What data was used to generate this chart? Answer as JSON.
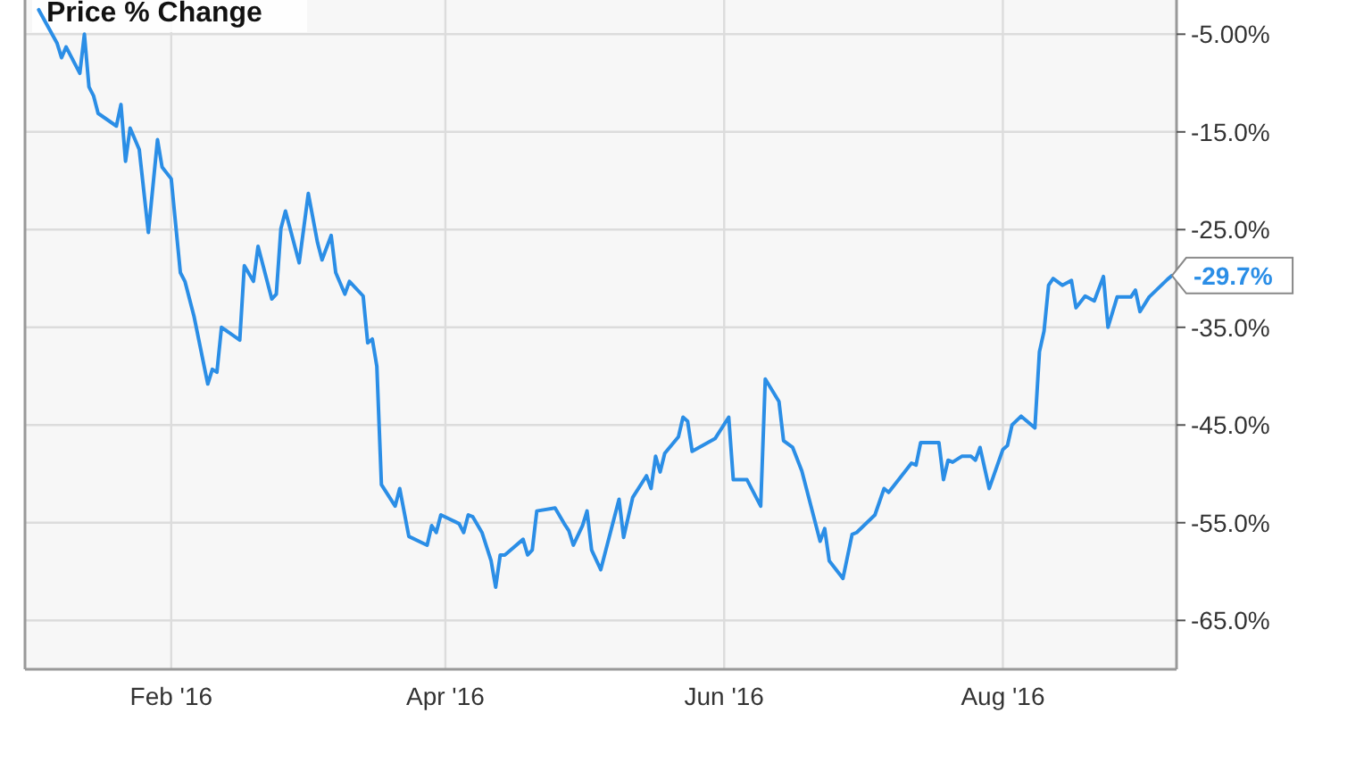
{
  "chart_data": {
    "type": "line",
    "title": "Price % Change",
    "x": [
      "2016-01-03",
      "2016-01-07",
      "2016-01-08",
      "2016-01-09",
      "2016-01-12",
      "2016-01-13",
      "2016-01-14",
      "2016-01-15",
      "2016-01-16",
      "2016-01-20",
      "2016-01-21",
      "2016-01-22",
      "2016-01-23",
      "2016-01-25",
      "2016-01-27",
      "2016-01-29",
      "2016-01-30",
      "2016-02-01",
      "2016-02-03",
      "2016-02-04",
      "2016-02-06",
      "2016-02-09",
      "2016-02-10",
      "2016-02-11",
      "2016-02-12",
      "2016-02-16",
      "2016-02-17",
      "2016-02-19",
      "2016-02-20",
      "2016-02-23",
      "2016-02-24",
      "2016-02-25",
      "2016-02-26",
      "2016-02-29",
      "2016-03-02",
      "2016-03-04",
      "2016-03-05",
      "2016-03-07",
      "2016-03-08",
      "2016-03-10",
      "2016-03-11",
      "2016-03-14",
      "2016-03-15",
      "2016-03-16",
      "2016-03-17",
      "2016-03-18",
      "2016-03-21",
      "2016-03-22",
      "2016-03-24",
      "2016-03-28",
      "2016-03-29",
      "2016-03-30",
      "2016-03-31",
      "2016-04-04",
      "2016-04-05",
      "2016-04-06",
      "2016-04-07",
      "2016-04-09",
      "2016-04-11",
      "2016-04-12",
      "2016-04-13",
      "2016-04-14",
      "2016-04-18",
      "2016-04-19",
      "2016-04-20",
      "2016-04-21",
      "2016-04-25",
      "2016-04-27",
      "2016-04-28",
      "2016-04-29",
      "2016-05-01",
      "2016-05-02",
      "2016-05-03",
      "2016-05-05",
      "2016-05-09",
      "2016-05-10",
      "2016-05-12",
      "2016-05-15",
      "2016-05-16",
      "2016-05-17",
      "2016-05-18",
      "2016-05-19",
      "2016-05-22",
      "2016-05-23",
      "2016-05-24",
      "2016-05-25",
      "2016-05-30",
      "2016-06-02",
      "2016-06-03",
      "2016-06-06",
      "2016-06-08",
      "2016-06-09",
      "2016-06-10",
      "2016-06-13",
      "2016-06-14",
      "2016-06-16",
      "2016-06-18",
      "2016-06-22",
      "2016-06-23",
      "2016-06-24",
      "2016-06-27",
      "2016-06-29",
      "2016-06-30",
      "2016-07-04",
      "2016-07-06",
      "2016-07-07",
      "2016-07-12",
      "2016-07-13",
      "2016-07-14",
      "2016-07-18",
      "2016-07-19",
      "2016-07-20",
      "2016-07-21",
      "2016-07-23",
      "2016-07-25",
      "2016-07-26",
      "2016-07-27",
      "2016-07-29",
      "2016-08-01",
      "2016-08-02",
      "2016-08-03",
      "2016-08-05",
      "2016-08-08",
      "2016-08-09",
      "2016-08-10",
      "2016-08-11",
      "2016-08-12",
      "2016-08-14",
      "2016-08-16",
      "2016-08-17",
      "2016-08-19",
      "2016-08-21",
      "2016-08-23",
      "2016-08-24",
      "2016-08-26",
      "2016-08-29",
      "2016-08-30",
      "2016-08-31",
      "2016-09-02",
      "2016-09-06",
      "2016-09-07"
    ],
    "series": [
      {
        "color": "#2b8ee6",
        "values": [
          -2.5,
          -5.9,
          -7.4,
          -6.3,
          -9.0,
          -5.0,
          -10.4,
          -11.3,
          -13.1,
          -14.4,
          -12.2,
          -18.0,
          -14.6,
          -16.8,
          -25.3,
          -15.8,
          -18.6,
          -19.8,
          -29.4,
          -30.3,
          -33.9,
          -40.8,
          -39.3,
          -39.6,
          -35.0,
          -36.3,
          -28.7,
          -30.3,
          -26.7,
          -32.1,
          -31.6,
          -24.9,
          -23.1,
          -28.4,
          -21.3,
          -26.3,
          -28.1,
          -25.6,
          -29.4,
          -31.6,
          -30.3,
          -31.8,
          -36.6,
          -36.2,
          -39.0,
          -51.1,
          -53.3,
          -51.5,
          -56.4,
          -57.3,
          -55.3,
          -56.0,
          -54.2,
          -55.1,
          -56.0,
          -54.2,
          -54.4,
          -56.0,
          -58.9,
          -61.6,
          -58.3,
          -58.3,
          -56.7,
          -58.3,
          -57.8,
          -53.8,
          -53.5,
          -55.1,
          -55.8,
          -57.3,
          -55.3,
          -53.8,
          -57.8,
          -59.8,
          -52.6,
          -56.5,
          -52.4,
          -50.2,
          -51.5,
          -48.2,
          -49.8,
          -47.9,
          -46.2,
          -44.2,
          -44.6,
          -47.7,
          -46.4,
          -44.2,
          -50.6,
          -50.6,
          -52.4,
          -53.3,
          -40.3,
          -42.6,
          -46.6,
          -47.3,
          -49.7,
          -56.9,
          -55.6,
          -58.9,
          -60.7,
          -56.2,
          -56.0,
          -54.2,
          -51.5,
          -51.9,
          -48.9,
          -49.1,
          -46.8,
          -46.8,
          -50.6,
          -48.6,
          -48.8,
          -48.2,
          -48.2,
          -48.6,
          -47.3,
          -51.5,
          -47.5,
          -47.1,
          -45.0,
          -44.1,
          -45.3,
          -37.5,
          -35.4,
          -30.7,
          -30.0,
          -30.7,
          -30.2,
          -33.0,
          -31.8,
          -32.3,
          -29.8,
          -35.0,
          -31.9,
          -31.9,
          -31.2,
          -33.4,
          -31.9,
          -30.1,
          -29.7
        ]
      }
    ],
    "xlim": [
      "2015-12-31",
      "2016-09-08"
    ],
    "xticks": [
      {
        "value": "2016-02-01",
        "label": "Feb '16"
      },
      {
        "value": "2016-04-01",
        "label": "Apr '16"
      },
      {
        "value": "2016-06-01",
        "label": "Jun '16"
      },
      {
        "value": "2016-08-01",
        "label": "Aug '16"
      }
    ],
    "ylim": [
      -70,
      -1.5
    ],
    "yticks": [
      {
        "value": -5,
        "label": "-5.00%"
      },
      {
        "value": -15,
        "label": "-15.0%"
      },
      {
        "value": -25,
        "label": "-25.0%"
      },
      {
        "value": -35,
        "label": "-35.0%"
      },
      {
        "value": -45,
        "label": "-45.0%"
      },
      {
        "value": -55,
        "label": "-55.0%"
      },
      {
        "value": -65,
        "label": "-65.0%"
      }
    ],
    "annotations": [
      {
        "text": "-29.7%",
        "x": "2016-09-07",
        "y": -29.7
      }
    ],
    "grid": true,
    "line_style": "solid",
    "marker": "none"
  }
}
